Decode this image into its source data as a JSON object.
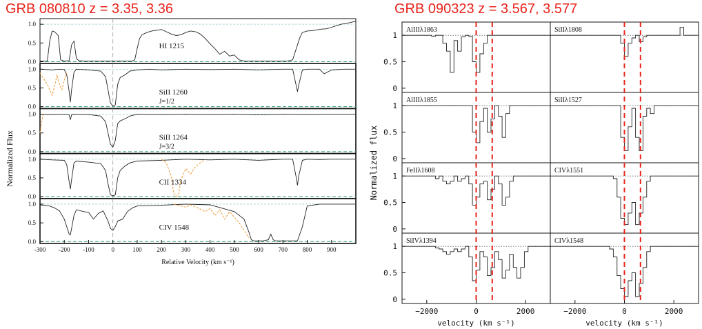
{
  "titles": {
    "left": "GRB 080810  z = 3.35, 3.36",
    "right": "GRB 090323 z = 3.567, 3.577"
  },
  "colors": {
    "title": "#e8231a",
    "spectrum": "#222222",
    "overlay": "#f0a040",
    "zero_line": "#2e9e6a",
    "continuum": "#9ad0d0",
    "marker": "#e8231a"
  },
  "chart_data": [
    {
      "type": "line",
      "title": "GRB 080810  z = 3.35, 3.36",
      "xlabel": "Relative Velocity (km s⁻¹)",
      "ylabel": "Normalized Flux",
      "xlim": [
        -300,
        1000
      ],
      "xticks": [
        -300,
        -200,
        -100,
        0,
        100,
        200,
        300,
        400,
        500,
        600,
        700,
        800,
        900
      ],
      "yticks": [
        "0.0",
        "0.5",
        "1.0"
      ],
      "ylim": [
        -0.05,
        1.15
      ],
      "panels": [
        {
          "label": "HI 1215",
          "sublabel": "",
          "series": [
            {
              "x": [
                -300,
                -270,
                -260,
                -250,
                -240,
                -225,
                -215,
                -200,
                -180,
                -170,
                -160,
                -150,
                -140,
                -120,
                -100,
                -80,
                -60,
                -40,
                -20,
                0,
                20,
                40,
                60,
                80,
                90,
                100,
                110,
                120,
                140,
                160,
                180,
                200,
                220,
                240,
                260,
                280,
                300,
                320,
                340,
                360,
                380,
                400,
                420,
                440,
                460,
                480,
                500,
                520,
                540,
                560,
                580,
                600,
                640,
                680,
                720,
                740,
                760,
                770,
                780,
                800,
                820,
                840,
                860,
                880,
                900,
                920,
                940,
                960,
                980,
                1000
              ],
              "y": [
                0.02,
                0.02,
                0.55,
                0.82,
                0.8,
                0.7,
                0.05,
                0.02,
                0.03,
                0.45,
                0.55,
                0.08,
                0.03,
                0.02,
                0.02,
                0.02,
                0.02,
                0.02,
                0.02,
                0.02,
                0.02,
                0.02,
                0.02,
                0.02,
                0.05,
                0.35,
                0.62,
                0.72,
                0.78,
                0.82,
                0.84,
                0.86,
                0.8,
                0.74,
                0.7,
                0.72,
                0.78,
                0.82,
                0.8,
                0.74,
                0.62,
                0.48,
                0.35,
                0.2,
                0.28,
                0.15,
                0.18,
                0.05,
                0.02,
                0.02,
                0.02,
                0.02,
                0.02,
                0.02,
                0.02,
                0.05,
                0.45,
                0.65,
                0.78,
                0.82,
                0.83,
                0.85,
                0.87,
                0.88,
                0.92,
                0.96,
                1.0,
                1.02,
                1.05,
                1.08
              ]
            }
          ]
        },
        {
          "label": "SiII 1260",
          "sublabel": "J=1/2",
          "series": [
            {
              "x": [
                -300,
                -250,
                -220,
                -200,
                -190,
                -180,
                -175,
                -170,
                -160,
                -150,
                -100,
                -50,
                -30,
                -20,
                -10,
                0,
                10,
                20,
                30,
                50,
                70,
                100,
                150,
                200,
                300,
                400,
                500,
                600,
                700,
                740,
                755,
                760,
                765,
                780,
                800,
                850,
                870,
                900,
                950,
                1000
              ],
              "y": [
                1.0,
                0.98,
                1.0,
                0.99,
                0.85,
                0.4,
                0.12,
                0.45,
                0.92,
                1.0,
                0.98,
                0.95,
                0.8,
                0.45,
                0.1,
                0.02,
                0.05,
                0.6,
                0.78,
                0.85,
                0.95,
                0.98,
                1.0,
                0.98,
                1.0,
                0.99,
                1.0,
                0.98,
                1.0,
                1.0,
                0.55,
                0.4,
                0.58,
                0.98,
                1.0,
                1.0,
                0.88,
                0.98,
                1.0,
                1.0
              ]
            },
            {
              "x": [
                -300,
                -270,
                -250,
                -240,
                -230,
                -220,
                -210,
                -200,
                -190
              ],
              "y": [
                0.9,
                0.6,
                0.3,
                0.55,
                0.85,
                0.6,
                0.45,
                0.7,
                0.9
              ]
            }
          ]
        },
        {
          "label": "SiII 1264",
          "sublabel": "J=3/2",
          "series": [
            {
              "x": [
                -300,
                -250,
                -200,
                -180,
                -175,
                -170,
                -160,
                -100,
                -50,
                -30,
                -20,
                -10,
                0,
                10,
                20,
                30,
                50,
                70,
                100,
                200,
                300,
                400,
                500,
                600,
                700,
                800,
                900,
                1000
              ],
              "y": [
                1.0,
                0.99,
                1.0,
                0.98,
                0.85,
                0.98,
                1.0,
                0.99,
                0.95,
                0.8,
                0.5,
                0.2,
                0.12,
                0.3,
                0.75,
                0.82,
                0.88,
                0.95,
                1.0,
                0.99,
                1.0,
                0.99,
                1.0,
                0.98,
                1.0,
                0.99,
                1.0,
                1.0
              ]
            },
            {
              "x": [
                -300,
                -295,
                -290,
                -285
              ],
              "y": [
                0.5,
                0.7,
                0.9,
                1.0
              ]
            }
          ]
        },
        {
          "label": "CII 1334",
          "sublabel": "",
          "series": [
            {
              "x": [
                -300,
                -250,
                -200,
                -190,
                -180,
                -175,
                -170,
                -160,
                -150,
                -100,
                -50,
                -30,
                -20,
                -10,
                0,
                10,
                20,
                30,
                50,
                70,
                100,
                200,
                300,
                400,
                500,
                600,
                700,
                740,
                755,
                760,
                765,
                780,
                800,
                850,
                900,
                1000
              ],
              "y": [
                1.0,
                0.98,
                0.97,
                0.85,
                0.4,
                0.2,
                0.45,
                0.9,
                0.95,
                0.92,
                0.88,
                0.7,
                0.35,
                0.05,
                0.02,
                0.05,
                0.5,
                0.7,
                0.82,
                0.9,
                0.95,
                0.97,
                1.0,
                0.98,
                1.0,
                0.97,
                1.0,
                1.0,
                0.5,
                0.3,
                0.55,
                0.97,
                1.0,
                0.99,
                1.0,
                1.0
              ]
            },
            {
              "x": [
                200,
                220,
                240,
                250,
                260,
                270,
                280,
                300,
                320,
                340,
                360,
                380
              ],
              "y": [
                1.0,
                0.9,
                0.55,
                0.1,
                0.0,
                0.05,
                0.45,
                0.75,
                0.6,
                0.8,
                0.9,
                1.0
              ]
            }
          ]
        },
        {
          "label": "CIV 1548",
          "sublabel": "",
          "series": [
            {
              "x": [
                -300,
                -260,
                -240,
                -220,
                -200,
                -190,
                -180,
                -175,
                -170,
                -160,
                -150,
                -120,
                -100,
                -80,
                -60,
                -40,
                -20,
                -10,
                0,
                10,
                20,
                40,
                60,
                80,
                100,
                200,
                300,
                400,
                500,
                540,
                560,
                570,
                580,
                600,
                620,
                640,
                650,
                660,
                670,
                680,
                700,
                720,
                740,
                760,
                780,
                800,
                850,
                900,
                1000
              ],
              "y": [
                0.98,
                0.95,
                0.9,
                0.82,
                0.6,
                0.4,
                0.2,
                0.18,
                0.35,
                0.7,
                0.85,
                0.8,
                0.78,
                0.6,
                0.75,
                0.82,
                0.55,
                0.35,
                0.3,
                0.4,
                0.55,
                0.6,
                0.8,
                0.9,
                0.95,
                0.97,
                1.0,
                0.98,
                0.8,
                0.6,
                0.25,
                0.05,
                0.02,
                0.02,
                0.02,
                0.05,
                0.2,
                0.05,
                0.02,
                0.02,
                0.02,
                0.02,
                0.02,
                0.02,
                0.4,
                0.95,
                1.0,
                1.0,
                1.0
              ]
            },
            {
              "x": [
                250,
                280,
                300,
                320,
                350,
                380,
                400,
                420,
                440,
                460,
                480,
                500,
                520,
                540,
                560
              ],
              "y": [
                1.0,
                0.95,
                0.92,
                0.98,
                0.9,
                0.8,
                0.88,
                0.7,
                0.85,
                0.6,
                0.8,
                0.65,
                0.5,
                0.3,
                0.1
              ]
            }
          ]
        }
      ]
    },
    {
      "type": "line",
      "title": "GRB 090323 z = 3.567, 3.577",
      "xlabel": "velocity (km s⁻¹)",
      "ylabel": "Normalized flux",
      "xlim": [
        -3000,
        3000
      ],
      "xticks": [
        -2000,
        0,
        2000
      ],
      "yticks": [
        "0",
        "0.5",
        "1"
      ],
      "ylim": [
        -0.08,
        1.25
      ],
      "markers": [
        0,
        650
      ],
      "panels": [
        {
          "label": "AlIIIλ1863",
          "y": [
            1,
            1,
            1,
            1,
            1,
            1,
            1,
            1,
            0.98,
            1,
            1,
            0.85,
            0.7,
            0.3,
            0.9,
            0.7,
            0.97,
            1,
            0.98,
            0.5,
            0.3,
            0.65,
            0.85,
            1,
            1,
            1,
            1,
            1,
            1,
            1,
            1,
            1,
            1,
            1,
            1,
            1,
            1,
            1,
            1,
            1
          ]
        },
        {
          "label": "SiIIλ1808",
          "y": [
            1,
            1,
            1,
            1,
            1,
            1,
            1,
            1,
            1,
            1,
            1,
            1,
            1,
            1,
            1,
            1,
            1,
            1,
            1,
            0.85,
            0.6,
            0.85,
            0.95,
            1,
            0.88,
            0.97,
            1,
            1,
            1,
            1,
            1,
            1,
            1,
            1,
            1,
            1.15,
            1,
            1,
            1,
            1
          ]
        },
        {
          "label": "AlIIIλ1855",
          "y": [
            1,
            1,
            1,
            1,
            1,
            1,
            1,
            1,
            1,
            1,
            1,
            1,
            1,
            1,
            1,
            1,
            1,
            1,
            1,
            0.5,
            0.3,
            0.7,
            0.95,
            0.5,
            0.75,
            1,
            0.8,
            0.4,
            0.85,
            1,
            1,
            1,
            1,
            1,
            1,
            1,
            1,
            1,
            1,
            1
          ]
        },
        {
          "label": "SiIIλ1527",
          "y": [
            1,
            1,
            1,
            1,
            1,
            1,
            1,
            1,
            1,
            1,
            1,
            1,
            1,
            1,
            1,
            1,
            1,
            1,
            1,
            0.4,
            0.15,
            0.6,
            0.95,
            0.4,
            0.15,
            0.8,
            0.95,
            0.85,
            1,
            1,
            1,
            1,
            1,
            1,
            1,
            1,
            1,
            1,
            1,
            1
          ]
        },
        {
          "label": "FeIIλ1608",
          "y": [
            1,
            1,
            1,
            1,
            1,
            1,
            1,
            1,
            1,
            0.95,
            1,
            0.9,
            0.85,
            0.9,
            1,
            0.9,
            0.95,
            1,
            0.85,
            0.45,
            0.6,
            0.85,
            0.9,
            0.55,
            0.75,
            1,
            0.85,
            0.45,
            0.6,
            0.9,
            1,
            1,
            1,
            1,
            1,
            1,
            1,
            1,
            1,
            1
          ]
        },
        {
          "label": "CIVλ1551",
          "y": [
            1,
            1,
            1,
            1,
            1,
            1,
            1,
            1,
            1,
            1,
            1,
            1,
            1,
            1,
            1,
            1,
            1,
            0.95,
            0.6,
            0.2,
            0.08,
            0.3,
            0.5,
            0.08,
            0.3,
            0.6,
            0.9,
            1,
            1,
            1,
            1,
            1,
            1,
            1,
            1,
            1,
            1,
            1,
            1,
            1
          ]
        },
        {
          "label": "SiIVλ1394",
          "y": [
            1,
            1,
            1,
            1,
            1,
            1,
            1,
            1,
            1,
            0.97,
            0.95,
            0.9,
            0.85,
            0.9,
            0.95,
            0.9,
            0.95,
            1,
            0.8,
            0.35,
            0.55,
            0.9,
            0.8,
            0.45,
            0.6,
            0.9,
            0.75,
            0.4,
            0.55,
            0.85,
            0.6,
            0.4,
            0.6,
            0.9,
            1,
            1,
            1,
            1,
            1,
            1
          ]
        },
        {
          "label": "CIVλ1548",
          "y": [
            1,
            1,
            1,
            1,
            1,
            1,
            1,
            1,
            1,
            1,
            1,
            1,
            1,
            1,
            1,
            1,
            0.95,
            0.8,
            0.45,
            0.2,
            0.05,
            0.35,
            0.5,
            0.05,
            0.3,
            0.6,
            0.9,
            1,
            1,
            1,
            1,
            1,
            1,
            1,
            1,
            1,
            1,
            1,
            1,
            1
          ]
        }
      ]
    }
  ]
}
